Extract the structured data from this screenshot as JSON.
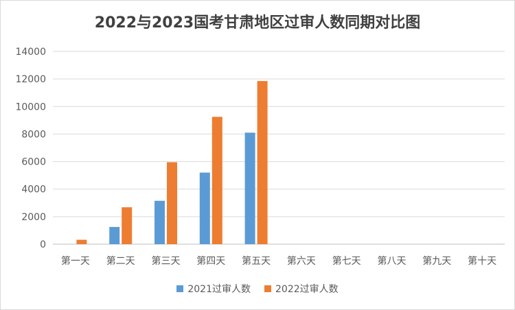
{
  "chart_data": {
    "type": "bar",
    "title": "2022与2023国考甘肃地区过审人数同期对比图",
    "xlabel": "",
    "ylabel": "",
    "categories": [
      "第一天",
      "第二天",
      "第三天",
      "第四天",
      "第五天",
      "第六天",
      "第七天",
      "第八天",
      "第九天",
      "第十天"
    ],
    "series": [
      {
        "name": "2021过审人数",
        "color": "#5b9bd5",
        "values": [
          0,
          1250,
          3150,
          5200,
          8100,
          null,
          null,
          null,
          null,
          null
        ]
      },
      {
        "name": "2022过审人数",
        "color": "#ed7d31",
        "values": [
          320,
          2680,
          5950,
          9250,
          11850,
          null,
          null,
          null,
          null,
          null
        ]
      }
    ],
    "ylim": [
      0,
      14000
    ],
    "yticks": [
      0,
      2000,
      4000,
      6000,
      8000,
      10000,
      12000,
      14000
    ],
    "grid": true,
    "legend_position": "bottom"
  }
}
